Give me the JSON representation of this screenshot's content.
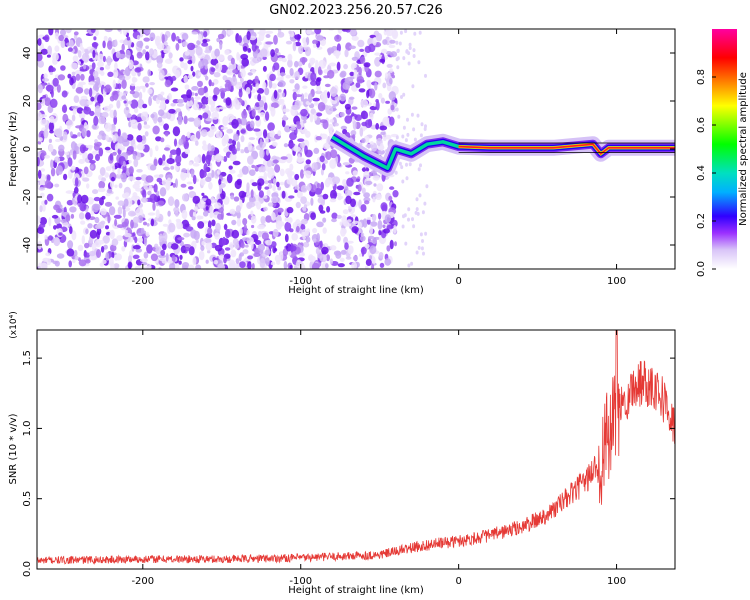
{
  "title": "GN02.2023.256.20.57.C26",
  "chart_data": [
    {
      "type": "heatmap",
      "xlabel": "Height of straight line (km)",
      "ylabel": "Frequency (Hz)",
      "xlim": [
        -267,
        137
      ],
      "ylim": [
        -50,
        50
      ],
      "x_ticks": [
        -200,
        -100,
        0,
        100
      ],
      "y_ticks": [
        -40,
        -20,
        0,
        20,
        40
      ],
      "colorbar": {
        "label": "Normalized spectral amplitude",
        "range": [
          0,
          1
        ],
        "ticks": [
          0.0,
          0.2,
          0.4,
          0.6,
          0.8
        ],
        "colormap": [
          "#ffffff",
          "#d8c4f8",
          "#9b30ff",
          "#3000ff",
          "#00b0ff",
          "#00e0c0",
          "#00ff00",
          "#ffff00",
          "#ff8000",
          "#ff0000",
          "#ff00a0"
        ]
      },
      "ridge": {
        "description_points": [
          [
            -80,
            5
          ],
          [
            -60,
            -3
          ],
          [
            -45,
            -8
          ],
          [
            -40,
            0
          ],
          [
            -30,
            -2
          ],
          [
            -20,
            2
          ],
          [
            -10,
            3
          ],
          [
            0,
            1
          ],
          [
            20,
            0.5
          ],
          [
            60,
            0.5
          ],
          [
            85,
            2
          ],
          [
            90,
            -2
          ],
          [
            95,
            0.5
          ],
          [
            137,
            0.5
          ]
        ]
      }
    },
    {
      "type": "line",
      "xlabel": "Height of straight line (km)",
      "ylabel": "SNR (10 * v/v)",
      "y_multiplier": "(x10⁴)",
      "xlim": [
        -267,
        137
      ],
      "ylim": [
        0,
        1.7
      ],
      "x_ticks": [
        -200,
        -100,
        0,
        100
      ],
      "y_ticks": [
        0.0,
        0.5,
        1.0,
        1.5
      ],
      "series": [
        {
          "color": "#e53935",
          "x": [
            -267,
            -200,
            -150,
            -100,
            -50,
            -30,
            -20,
            0,
            20,
            40,
            50,
            60,
            70,
            80,
            90,
            95,
            100,
            105,
            110,
            115,
            120,
            125,
            130,
            137
          ],
          "y": [
            0.06,
            0.07,
            0.07,
            0.08,
            0.1,
            0.15,
            0.17,
            0.2,
            0.24,
            0.3,
            0.35,
            0.42,
            0.52,
            0.62,
            0.78,
            0.95,
            1.08,
            1.2,
            1.28,
            1.33,
            1.33,
            1.3,
            1.2,
            1.0
          ]
        }
      ]
    }
  ]
}
